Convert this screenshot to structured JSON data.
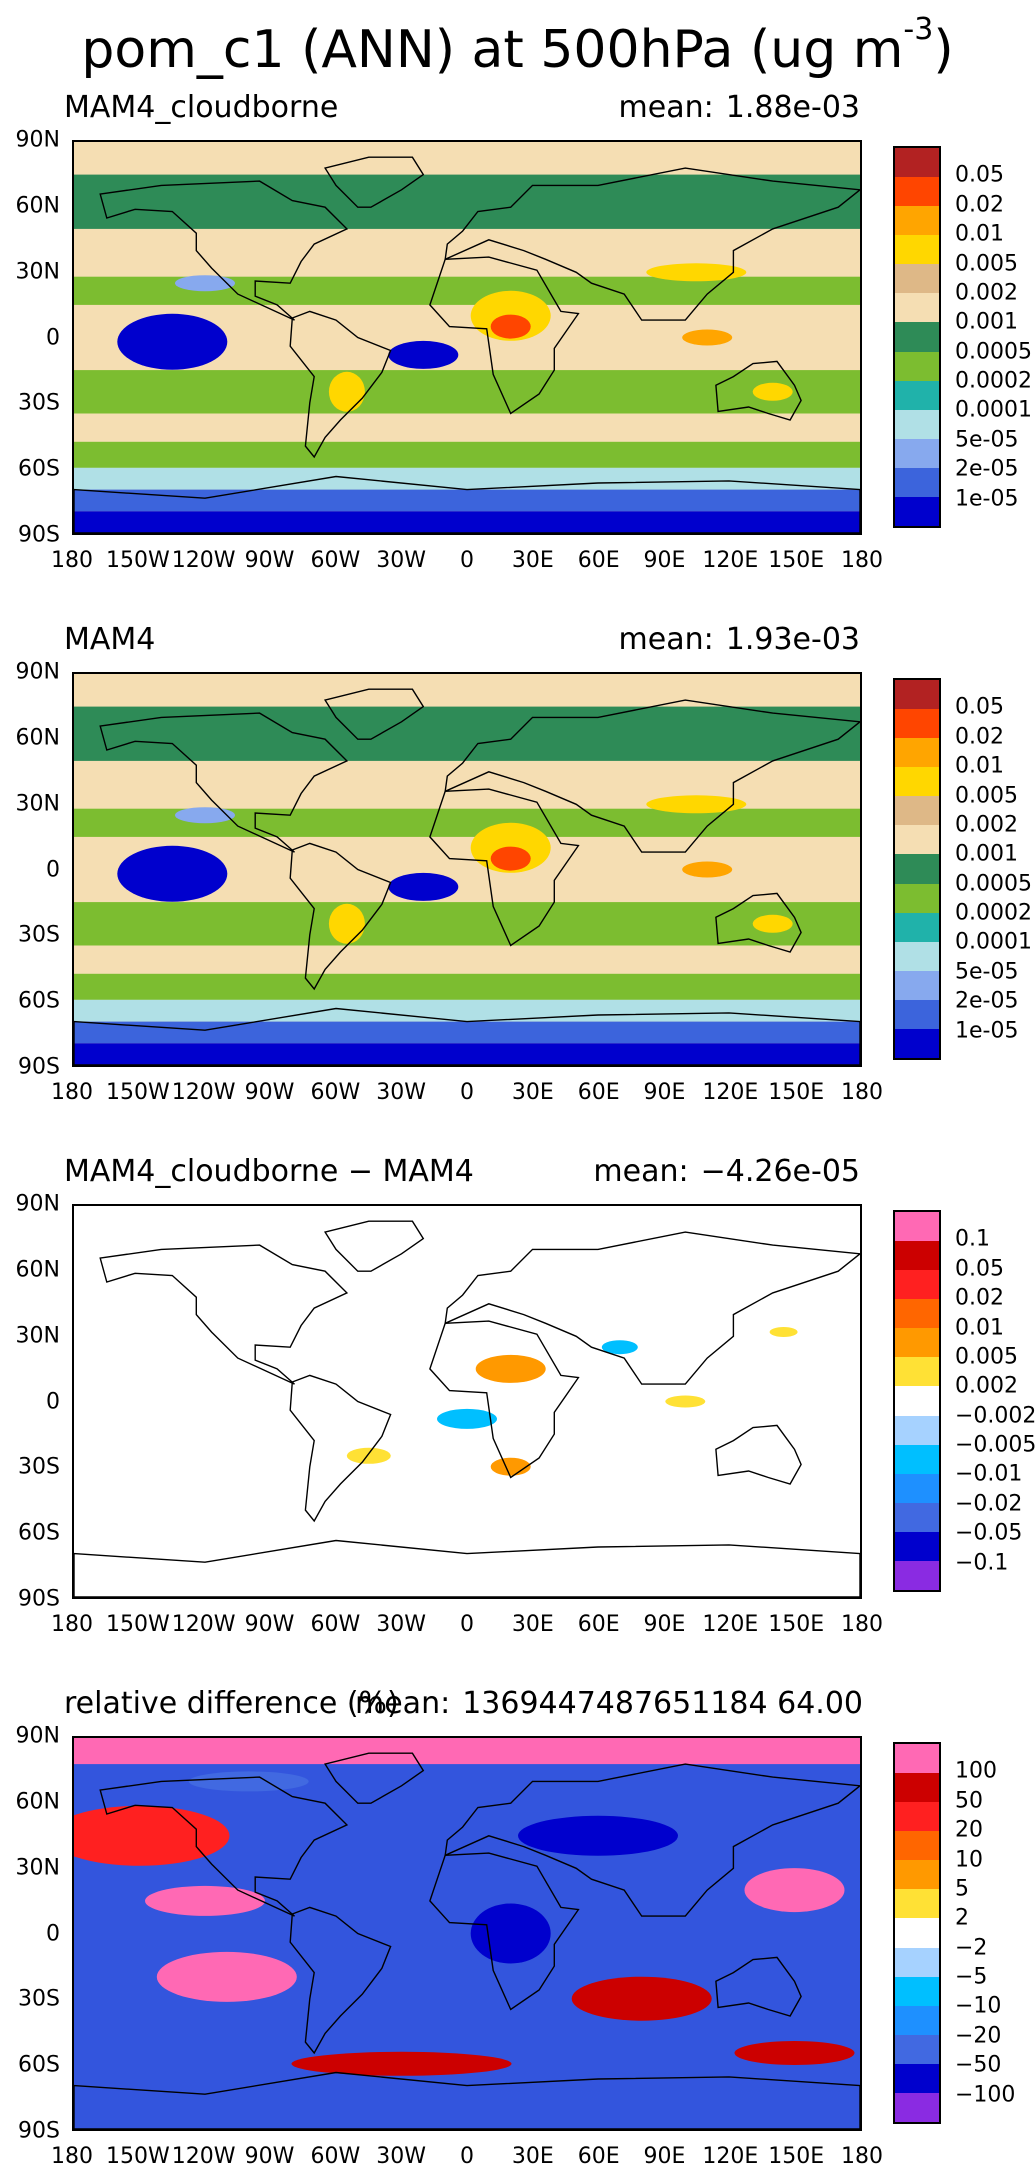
{
  "figure": {
    "title": "pom_c1 (ANN) at 500hPa (ug m",
    "title_exponent": "-3",
    "title_close": ")"
  },
  "axes": {
    "lat_labels": [
      "90N",
      "60N",
      "30N",
      "0",
      "30S",
      "60S",
      "90S"
    ],
    "lon_labels": [
      "180",
      "150W",
      "120W",
      "90W",
      "60W",
      "30W",
      "0",
      "30E",
      "60E",
      "90E",
      "120E",
      "150E",
      "180"
    ]
  },
  "panels": [
    {
      "name": "MAM4_cloudborne",
      "mean_label": "mean:",
      "mean_value": "1.88e-03",
      "colorbar": {
        "labels": [
          "0.05",
          "0.02",
          "0.01",
          "0.005",
          "0.002",
          "0.001",
          "0.0005",
          "0.0002",
          "0.0001",
          "5e-05",
          "2e-05",
          "1e-05"
        ],
        "colors": [
          "#b22222",
          "#ff4500",
          "#ffa500",
          "#ffd700",
          "#deb887",
          "#f5deb3",
          "#2e8b57",
          "#7cbd30",
          "#20b2aa",
          "#b0e0e6",
          "#87a9ee",
          "#3c64dc",
          "#0000cd"
        ]
      },
      "background": "#f5deb3"
    },
    {
      "name": "MAM4",
      "mean_label": "mean:",
      "mean_value": "1.93e-03",
      "colorbar": {
        "labels": [
          "0.05",
          "0.02",
          "0.01",
          "0.005",
          "0.002",
          "0.001",
          "0.0005",
          "0.0002",
          "0.0001",
          "5e-05",
          "2e-05",
          "1e-05"
        ],
        "colors": [
          "#b22222",
          "#ff4500",
          "#ffa500",
          "#ffd700",
          "#deb887",
          "#f5deb3",
          "#2e8b57",
          "#7cbd30",
          "#20b2aa",
          "#b0e0e6",
          "#87a9ee",
          "#3c64dc",
          "#0000cd"
        ]
      },
      "background": "#f5deb3"
    },
    {
      "name": "MAM4_cloudborne − MAM4",
      "mean_label": "mean:",
      "mean_value": "−4.26e-05",
      "colorbar": {
        "labels": [
          "0.1",
          "0.05",
          "0.02",
          "0.01",
          "0.005",
          "0.002",
          "−0.002",
          "−0.005",
          "−0.01",
          "−0.02",
          "−0.05",
          "−0.1"
        ],
        "colors": [
          "#ff69b4",
          "#cc0000",
          "#ff2020",
          "#ff6600",
          "#ff9900",
          "#ffe135",
          "#ffffff",
          "#a6d2ff",
          "#00bfff",
          "#1e90ff",
          "#4169e1",
          "#0000cd",
          "#8a2be2"
        ]
      },
      "background": "#ffffff"
    },
    {
      "name": "relative difference (%)",
      "mean_label": "mean:",
      "mean_value": "1369447487651184 64.00",
      "colorbar": {
        "labels": [
          "100",
          "50",
          "20",
          "10",
          "5",
          "2",
          "−2",
          "−5",
          "−10",
          "−20",
          "−50",
          "−100"
        ],
        "colors": [
          "#ff69b4",
          "#cc0000",
          "#ff2020",
          "#ff6600",
          "#ff9900",
          "#ffe135",
          "#ffffff",
          "#a6d2ff",
          "#00bfff",
          "#1e90ff",
          "#4169e1",
          "#0000cd",
          "#8a2be2"
        ]
      },
      "background": "#3355dd"
    }
  ]
}
